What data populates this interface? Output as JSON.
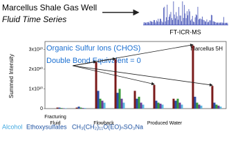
{
  "header": {
    "title": "Marcellus Shale Gas Well",
    "subtitle": "Fluid Time Series",
    "instrument": "FT-ICR-MS"
  },
  "chart_data": {
    "type": "bar",
    "annotations": [
      "Organic Sulfur Ions (CHOS)",
      "Double Bond Equivalent = 0",
      "Marcellus 5H"
    ],
    "y_label": "Summed Intensity",
    "x_labels": [
      "Fracturing",
      "Fluid",
      "Flowback",
      "Produced Water"
    ],
    "categories": [
      null,
      null,
      null,
      null,
      null,
      null,
      null,
      null,
      null
    ],
    "series": [
      {
        "color": "#7a1a1a",
        "values": [
          500000000.0,
          500000000.0,
          23500000000.0,
          25000000000.0,
          9000000000.0,
          12000000000.0,
          5000000000.0,
          32000000000.0,
          11500000000.0
        ]
      },
      {
        "color": "#2b4fa8",
        "values": [
          500000000.0,
          1000000000.0,
          9000000000.0,
          8000000000.0,
          5000000000.0,
          4000000000.0,
          4000000000.0,
          6000000000.0,
          3000000000.0
        ]
      },
      {
        "color": "#3a9a3a",
        "values": [
          300000000.0,
          500000000.0,
          5000000000.0,
          10000000000.0,
          6000000000.0,
          3000000000.0,
          5000000000.0,
          3000000000.0,
          2000000000.0
        ]
      },
      {
        "color": "#6a3d9a",
        "values": [
          200000000.0,
          300000000.0,
          4000000000.0,
          5000000000.0,
          3000000000.0,
          2500000000.0,
          3000000000.0,
          2000000000.0,
          1500000000.0
        ]
      },
      {
        "color": "#5bb8e0",
        "values": [
          200000000.0,
          300000000.0,
          3000000000.0,
          3000000000.0,
          2000000000.0,
          2000000000.0,
          2000000000.0,
          1500000000.0,
          1000000000.0
        ]
      }
    ],
    "ylim": [
      0,
      34000000000.0
    ],
    "yticks": [
      0,
      {
        "value": 10000000000.0,
        "label": "1x10¹⁰"
      },
      {
        "value": 20000000000.0,
        "label": "2x10¹⁰"
      },
      {
        "value": 30000000000.0,
        "label": "3x10¹⁰"
      }
    ]
  },
  "caption": {
    "word1": "Alcohol",
    "word2": "Ethoxysulfates",
    "formula": "CH₃(CH₂)₁₁O(EO)ₙSO₃Na"
  }
}
